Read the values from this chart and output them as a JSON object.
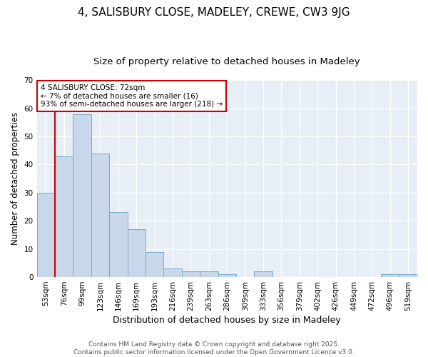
{
  "title": "4, SALISBURY CLOSE, MADELEY, CREWE, CW3 9JG",
  "subtitle": "Size of property relative to detached houses in Madeley",
  "xlabel": "Distribution of detached houses by size in Madeley",
  "ylabel": "Number of detached properties",
  "categories": [
    "53sqm",
    "76sqm",
    "99sqm",
    "123sqm",
    "146sqm",
    "169sqm",
    "193sqm",
    "216sqm",
    "239sqm",
    "263sqm",
    "286sqm",
    "309sqm",
    "333sqm",
    "356sqm",
    "379sqm",
    "402sqm",
    "426sqm",
    "449sqm",
    "472sqm",
    "496sqm",
    "519sqm"
  ],
  "values": [
    30,
    43,
    58,
    44,
    23,
    17,
    9,
    3,
    2,
    2,
    1,
    0,
    2,
    0,
    0,
    0,
    0,
    0,
    0,
    1,
    1
  ],
  "bar_color": "#c8d8ea",
  "bar_edge_color": "#7aaac8",
  "vline_x": 0.5,
  "vline_color": "#cc0000",
  "annotation_title": "4 SALISBURY CLOSE: 72sqm",
  "annotation_line2": "← 7% of detached houses are smaller (16)",
  "annotation_line3": "93% of semi-detached houses are larger (218) →",
  "annotation_box_facecolor": "#ffffff",
  "annotation_box_edgecolor": "#cc0000",
  "ylim": [
    0,
    70
  ],
  "yticks": [
    0,
    10,
    20,
    30,
    40,
    50,
    60,
    70
  ],
  "footer1": "Contains HM Land Registry data © Crown copyright and database right 2025.",
  "footer2": "Contains public sector information licensed under the Open Government Licence v3.0.",
  "bg_color": "#ffffff",
  "plot_bg_color": "#e8eef6",
  "title_fontsize": 11,
  "subtitle_fontsize": 9.5,
  "xlabel_fontsize": 9,
  "ylabel_fontsize": 8.5,
  "tick_fontsize": 7.5,
  "annotation_fontsize": 7.5,
  "footer_fontsize": 6.5
}
